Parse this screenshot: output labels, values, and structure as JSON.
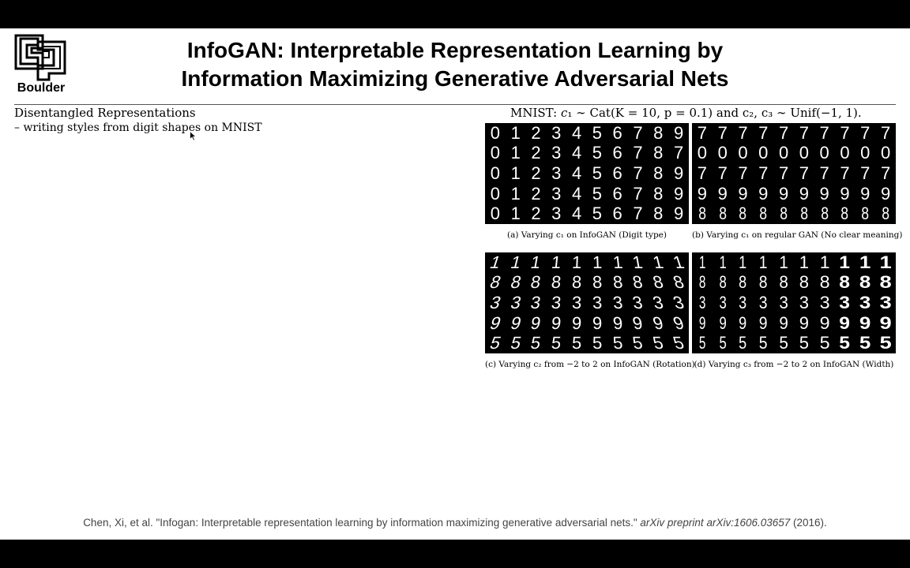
{
  "logo": {
    "text": "Boulder",
    "icon": "cu-boulder-logo-icon"
  },
  "title": {
    "line1": "InfoGAN: Interpretable Representation Learning by",
    "line2": "Information Maximizing Generative Adversarial Nets"
  },
  "left": {
    "heading": "Disentangled Representations",
    "bullet": "– writing styles from digit shapes on MNIST"
  },
  "figure": {
    "title_prefix": "MNIST: ",
    "title_c1": "c",
    "title_math": "₁ ∼ Cat(K = 10, p = 0.1) and c₂, c₃ ∼ Unif(−1, 1).",
    "panels": [
      {
        "id": "a",
        "caption": "(a) Varying c₁ on InfoGAN (Digit type)",
        "rows": [
          [
            "0",
            "1",
            "2",
            "3",
            "4",
            "5",
            "6",
            "7",
            "8",
            "9"
          ],
          [
            "0",
            "1",
            "2",
            "3",
            "4",
            "5",
            "6",
            "7",
            "8",
            "7"
          ],
          [
            "0",
            "1",
            "2",
            "3",
            "4",
            "5",
            "6",
            "7",
            "8",
            "9"
          ],
          [
            "0",
            "1",
            "2",
            "3",
            "4",
            "5",
            "6",
            "7",
            "8",
            "9"
          ],
          [
            "0",
            "1",
            "2",
            "3",
            "4",
            "5",
            "6",
            "7",
            "8",
            "9"
          ]
        ]
      },
      {
        "id": "b",
        "caption": "(b) Varying c₁ on regular GAN (No clear meaning)",
        "rows": [
          [
            "7",
            "7",
            "7",
            "7",
            "7",
            "7",
            "7",
            "7",
            "7",
            "7"
          ],
          [
            "0",
            "0",
            "0",
            "0",
            "0",
            "0",
            "0",
            "0",
            "0",
            "0"
          ],
          [
            "7",
            "7",
            "7",
            "7",
            "7",
            "7",
            "7",
            "7",
            "7",
            "7"
          ],
          [
            "9",
            "9",
            "9",
            "9",
            "9",
            "9",
            "9",
            "9",
            "9",
            "9"
          ],
          [
            "8",
            "8",
            "8",
            "8",
            "8",
            "8",
            "8",
            "8",
            "8",
            "8"
          ]
        ]
      },
      {
        "id": "c",
        "caption": "(c) Varying c₂ from −2 to 2 on InfoGAN (Rotation)",
        "rows": [
          [
            "1",
            "1",
            "1",
            "1",
            "1",
            "1",
            "1",
            "1",
            "1",
            "1"
          ],
          [
            "8",
            "8",
            "8",
            "8",
            "8",
            "8",
            "8",
            "8",
            "8",
            "8"
          ],
          [
            "3",
            "3",
            "3",
            "3",
            "3",
            "3",
            "3",
            "3",
            "3",
            "3"
          ],
          [
            "9",
            "9",
            "9",
            "9",
            "9",
            "9",
            "9",
            "9",
            "9",
            "9"
          ],
          [
            "5",
            "5",
            "5",
            "5",
            "5",
            "5",
            "5",
            "5",
            "5",
            "5"
          ]
        ]
      },
      {
        "id": "d",
        "caption": "(d) Varying c₃ from −2 to 2 on InfoGAN (Width)",
        "rows": [
          [
            "1",
            "1",
            "1",
            "1",
            "1",
            "1",
            "1",
            "1",
            "1",
            "1"
          ],
          [
            "8",
            "8",
            "8",
            "8",
            "8",
            "8",
            "8",
            "8",
            "8",
            "8"
          ],
          [
            "3",
            "3",
            "3",
            "3",
            "3",
            "3",
            "3",
            "3",
            "3",
            "3"
          ],
          [
            "9",
            "9",
            "9",
            "9",
            "9",
            "9",
            "9",
            "9",
            "9",
            "9"
          ],
          [
            "5",
            "5",
            "5",
            "5",
            "5",
            "5",
            "5",
            "5",
            "5",
            "5"
          ]
        ]
      }
    ]
  },
  "citation": {
    "main": "Chen, Xi, et al. \"Infogan: Interpretable representation learning by information maximizing generative adversarial nets.\" ",
    "venue": "arXiv preprint arXiv:1606.03657",
    "year": " (2016)."
  }
}
